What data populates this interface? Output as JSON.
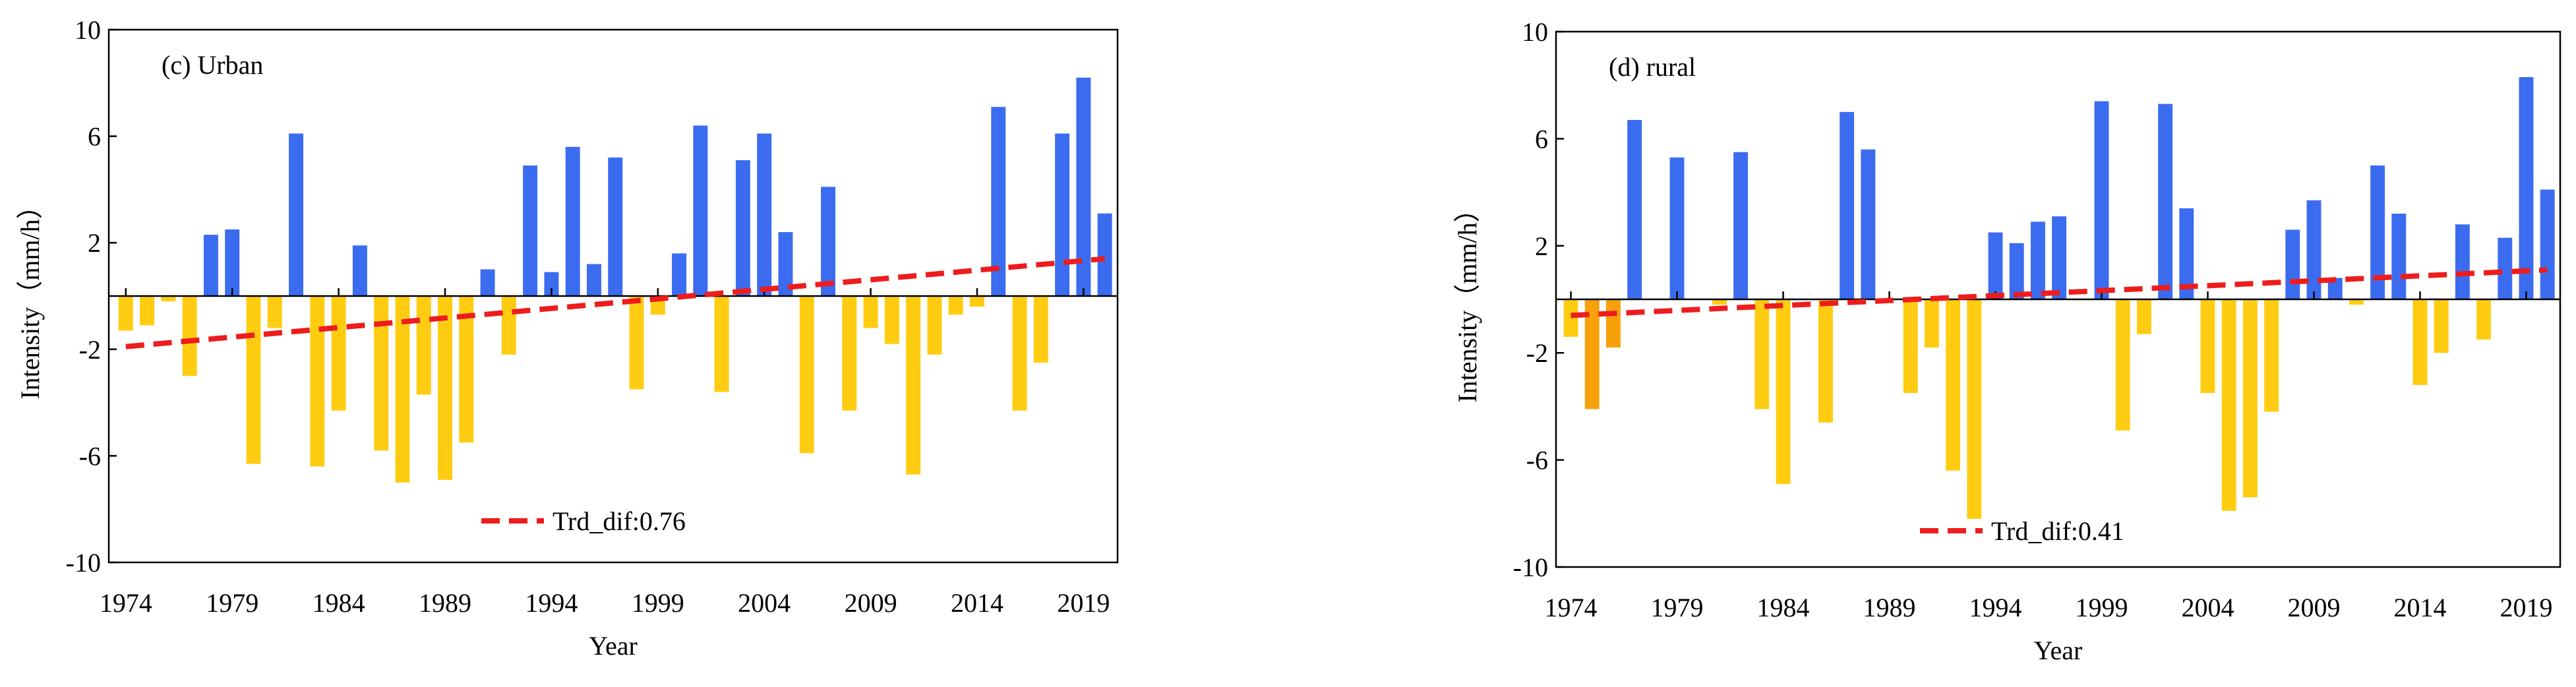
{
  "chart_data": [
    {
      "type": "bar",
      "title": "(c) Urban",
      "x_label": "Year",
      "y_label": "Intensity（mm/h）",
      "x": [
        1974,
        1975,
        1976,
        1977,
        1978,
        1979,
        1980,
        1981,
        1982,
        1983,
        1984,
        1985,
        1986,
        1987,
        1988,
        1989,
        1990,
        1991,
        1992,
        1993,
        1994,
        1995,
        1996,
        1997,
        1998,
        1999,
        2000,
        2001,
        2002,
        2003,
        2004,
        2005,
        2006,
        2007,
        2008,
        2009,
        2010,
        2011,
        2012,
        2013,
        2014,
        2015,
        2016,
        2017,
        2018,
        2019,
        2020
      ],
      "values": [
        -1.3,
        -1.1,
        -0.2,
        -3.0,
        2.3,
        2.5,
        -6.3,
        -1.2,
        6.1,
        -6.4,
        -4.3,
        1.9,
        -5.8,
        -7.0,
        -3.7,
        -6.9,
        -5.5,
        1.0,
        -2.2,
        4.9,
        0.9,
        5.6,
        1.2,
        5.2,
        -3.5,
        -0.7,
        1.6,
        6.4,
        -3.6,
        5.1,
        6.1,
        2.4,
        -5.9,
        4.1,
        -4.3,
        -1.2,
        -1.8,
        -6.7,
        -2.2,
        -0.7,
        -0.4,
        7.1,
        -4.3,
        -2.5,
        6.1,
        8.2,
        3.1
      ],
      "color_positive": "#3b6cf0",
      "color_negative": "#ffcc11",
      "trend": {
        "name": "Trd_dif:0.76",
        "color": "#ee1c1c",
        "x": [
          1974,
          2020
        ],
        "values": [
          -1.9,
          1.4
        ]
      },
      "xlim": [
        1973.2,
        2020.6
      ],
      "xticks": [
        1974,
        1979,
        1984,
        1989,
        1994,
        1999,
        2004,
        2009,
        2014,
        2019
      ],
      "ylim": [
        -10,
        10
      ],
      "yticks": [
        -10,
        -6,
        -2,
        2,
        6,
        10
      ]
    },
    {
      "type": "bar",
      "title": "(d) rural",
      "x_label": "Year",
      "y_label": "Intensity（mm/h）",
      "x": [
        1974,
        1975,
        1976,
        1977,
        1978,
        1979,
        1980,
        1981,
        1982,
        1983,
        1984,
        1985,
        1986,
        1987,
        1988,
        1989,
        1990,
        1991,
        1992,
        1993,
        1994,
        1995,
        1996,
        1997,
        1998,
        1999,
        2000,
        2001,
        2002,
        2003,
        2004,
        2005,
        2006,
        2007,
        2008,
        2009,
        2010,
        2011,
        2012,
        2013,
        2014,
        2015,
        2016,
        2017,
        2018,
        2019,
        2020
      ],
      "values": [
        -1.4,
        -4.1,
        -1.8,
        6.7,
        0,
        5.3,
        0,
        -0.2,
        5.5,
        -4.1,
        -6.9,
        0,
        -4.6,
        7.0,
        5.6,
        0,
        -3.5,
        -1.8,
        -6.4,
        -8.2,
        2.5,
        2.1,
        2.9,
        3.1,
        0,
        7.4,
        -4.9,
        -1.3,
        7.3,
        3.4,
        -3.5,
        -7.9,
        -7.4,
        -4.2,
        2.6,
        3.7,
        0.8,
        -0.2,
        5.0,
        3.2,
        -3.2,
        -2.0,
        2.8,
        -1.5,
        2.3,
        8.3,
        4.1
      ],
      "color_positive": "#3b6cf0",
      "color_negative": "#ffcc11",
      "highlight": [
        1975,
        1976
      ],
      "highlight_color": "#f7a10a",
      "trend": {
        "name": "Trd_dif:0.41",
        "color": "#ee1c1c",
        "x": [
          1974,
          2020
        ],
        "values": [
          -0.6,
          1.1
        ]
      },
      "xlim": [
        1973.3,
        2020.6
      ],
      "xticks": [
        1974,
        1979,
        1984,
        1989,
        1994,
        1999,
        2004,
        2009,
        2014,
        2019
      ],
      "ylim": [
        -10,
        10
      ],
      "yticks": [
        -10,
        -6,
        -2,
        2,
        6,
        10
      ]
    }
  ]
}
